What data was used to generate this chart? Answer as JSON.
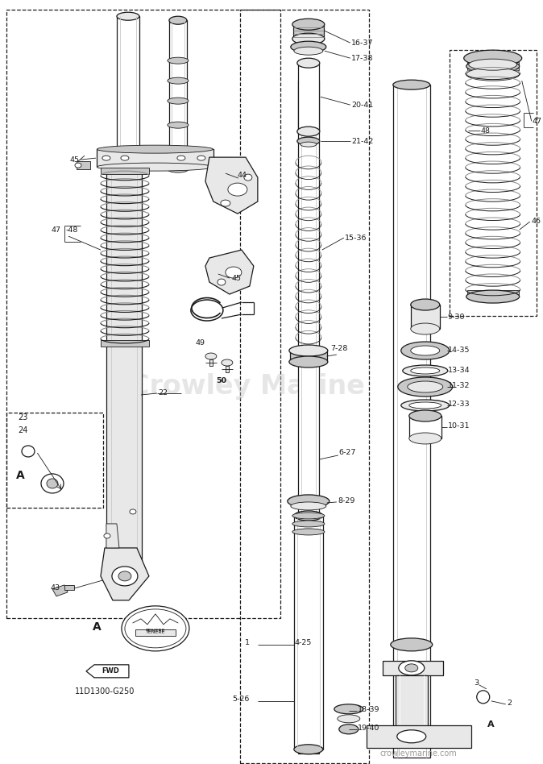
{
  "bg_color": "#ffffff",
  "line_color": "#1a1a1a",
  "watermark_text": "Crowley Marine",
  "watermark2_text": "crowleymarine.com",
  "part_code": "11D1300-G250",
  "figsize": [
    6.74,
    9.48
  ],
  "dpi": 100,
  "gray_light": "#e8e8e8",
  "gray_mid": "#c8c8c8",
  "gray_dark": "#888888",
  "lw_thin": 0.6,
  "lw_med": 0.9,
  "lw_thick": 1.3
}
